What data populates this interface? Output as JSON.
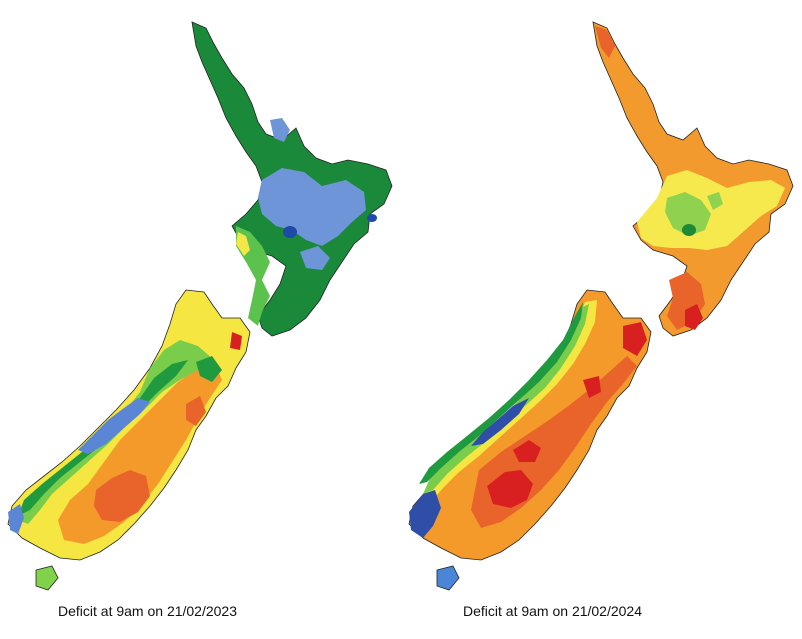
{
  "maps": [
    {
      "caption": "Deficit at  9am on 21/02/2023",
      "colors": {
        "north_base": "#1a8a3a",
        "north_patch": "#6f95d9",
        "north_deep": "#1f4aa8",
        "north_light": "#5cc24e",
        "north_yellow": "#f2e84a",
        "south_west_blue": "#5b86d6",
        "south_west_green": "#1f9a3f",
        "south_light_green": "#7acd4b",
        "south_yellow": "#f5e642",
        "south_orange": "#f39a2b",
        "south_deep_orange": "#e9642a",
        "south_red": "#d92020",
        "stewart": "#7fd24a",
        "coast": "#222222"
      }
    },
    {
      "caption": "Deficit at  9am on 21/02/2024",
      "colors": {
        "north_base": "#f29a2d",
        "north_patch": "#f5e94d",
        "north_deep": "#1e8a36",
        "north_light": "#8ed24f",
        "north_yellow": "#e9642a",
        "north_red": "#d92020",
        "south_west_blue": "#2f4ea8",
        "south_west_green": "#1f9a3f",
        "south_light_green": "#7acd4b",
        "south_yellow": "#f5e642",
        "south_orange": "#f39a2b",
        "south_deep_orange": "#e9642a",
        "south_red": "#d92020",
        "stewart": "#4a86d8",
        "coast": "#222222"
      }
    }
  ]
}
